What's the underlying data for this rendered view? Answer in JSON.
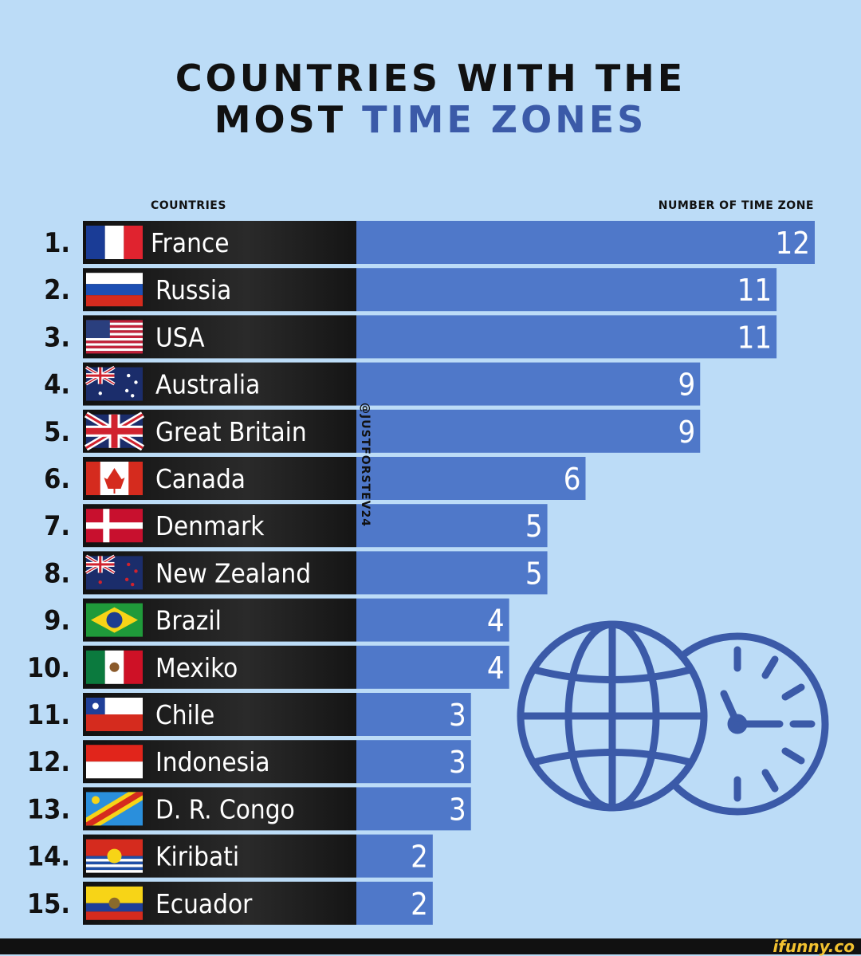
{
  "title": {
    "line1": "COUNTRIES WITH THE",
    "line2_prefix": "MOST",
    "line2_accent": "TIME ZONES"
  },
  "columns": {
    "left": "COUNTRIES",
    "right": "NUMBER OF TIME ZONE"
  },
  "watermark": "@JUSTFORSTEV24",
  "footer": {
    "logo": "ifunny.co"
  },
  "colors": {
    "background": "#bcdcf7",
    "bar": "#4f78c9",
    "label_band": "#1a1a1a",
    "accent": "#3b5aa8",
    "icon": "#3b5aa8"
  },
  "icons": [
    "globe-icon",
    "clock-icon"
  ],
  "chart_data": {
    "type": "bar",
    "orientation": "horizontal",
    "ranks": [
      "1.",
      "2.",
      "3.",
      "4.",
      "5.",
      "6.",
      "7.",
      "8.",
      "9.",
      "10.",
      "11.",
      "12.",
      "13.",
      "14.",
      "15."
    ],
    "categories": [
      "France",
      "Russia",
      "USA",
      "Australia",
      "Great Britain",
      "Canada",
      "Denmark",
      "New Zealand",
      "Brazil",
      "Mexiko",
      "Chile",
      "Indonesia",
      "D. R. Congo",
      "Kiribati",
      "Ecuador"
    ],
    "values": [
      12,
      11,
      11,
      9,
      9,
      6,
      5,
      5,
      4,
      4,
      3,
      3,
      3,
      2,
      2
    ],
    "flags": [
      "flag-france",
      "flag-russia",
      "flag-usa",
      "flag-australia",
      "flag-great-britain",
      "flag-canada",
      "flag-denmark",
      "flag-new-zealand",
      "flag-brazil",
      "flag-mexico",
      "flag-chile",
      "flag-indonesia",
      "flag-dr-congo",
      "flag-kiribati",
      "flag-ecuador"
    ],
    "xlim": [
      0,
      12
    ],
    "grid": false,
    "legend": "none"
  }
}
